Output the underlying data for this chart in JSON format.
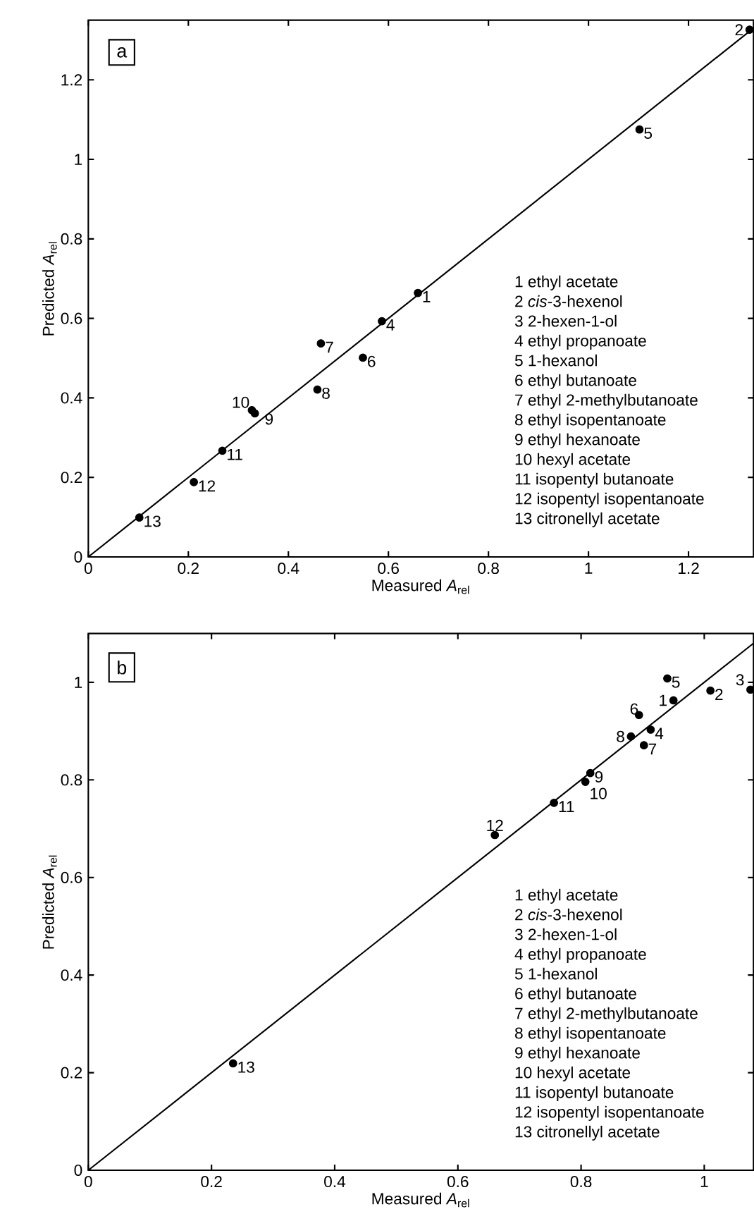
{
  "chart_data": [
    {
      "type": "scatter",
      "xlabel": "Measured *A*$_{rel}$",
      "ylabel": "Predicted *A*$_{rel}$",
      "xlim": [
        0,
        1.33
      ],
      "ylim": [
        0,
        1.35
      ],
      "xticks": [
        0,
        0.2,
        0.4,
        0.6,
        0.8,
        1,
        1.2
      ],
      "yticks": [
        0,
        0.2,
        0.4,
        0.6,
        0.8,
        1,
        1.2
      ],
      "series": [
        {
          "type": "scatter",
          "marker": "circle",
          "color": "#000000",
          "x": [
            0.659,
            1.322,
            0.587,
            1.102,
            0.549,
            0.465,
            0.458,
            0.333,
            0.327,
            0.268,
            0.211,
            0.102
          ],
          "values": [
            0.664,
            1.326,
            0.593,
            1.075,
            0.501,
            0.537,
            0.421,
            0.361,
            0.369,
            0.267,
            0.188,
            0.099
          ]
        },
        {
          "type": "line",
          "color": "#000000",
          "marker": "none",
          "line_style": "solid",
          "x": [
            0,
            1.33
          ],
          "values": [
            0,
            1.33
          ]
        }
      ],
      "annotations": [
        "a",
        "1 ethyl acetate",
        "2 *cis*-3-hexenol",
        "3 2-hexen-1-ol",
        "4 ethyl propanoate",
        "5 1-hexanol",
        "6 ethyl butanoate",
        "7 ethyl 2-methylbutanoate",
        "8 ethyl isopentanoate",
        "9 ethyl hexanoate",
        "10 hexyl acetate",
        "11 isopentyl butanoate",
        "12 isopentyl isopentanoate",
        "13 citronellyl acetate",
        {
          "text": "1",
          "x": 0.659,
          "y": 0.664
        },
        {
          "text": "2",
          "x": 1.322,
          "y": 1.326
        },
        {
          "text": "4",
          "x": 0.587,
          "y": 0.593
        },
        {
          "text": "5",
          "x": 1.102,
          "y": 1.075
        },
        {
          "text": "6",
          "x": 0.549,
          "y": 0.501
        },
        {
          "text": "7",
          "x": 0.465,
          "y": 0.537
        },
        {
          "text": "8",
          "x": 0.458,
          "y": 0.421
        },
        {
          "text": "9",
          "x": 0.333,
          "y": 0.361
        },
        {
          "text": "10",
          "x": 0.327,
          "y": 0.369
        },
        {
          "text": "11",
          "x": 0.268,
          "y": 0.267
        },
        {
          "text": "12",
          "x": 0.211,
          "y": 0.188
        },
        {
          "text": "13",
          "x": 0.102,
          "y": 0.099
        }
      ]
    },
    {
      "type": "scatter",
      "xlabel": "Measured *A*$_{rel}$",
      "ylabel": "Predicted *A*$_{rel}$",
      "xlim": [
        0,
        1.08
      ],
      "ylim": [
        0,
        1.1
      ],
      "xticks": [
        0,
        0.2,
        0.4,
        0.6,
        0.8,
        1
      ],
      "yticks": [
        0,
        0.2,
        0.4,
        0.6,
        0.8,
        1
      ],
      "series": [
        {
          "type": "scatter",
          "marker": "circle",
          "color": "#000000",
          "x": [
            0.95,
            1.01,
            1.075,
            0.913,
            0.94,
            0.894,
            0.902,
            0.881,
            0.815,
            0.807,
            0.756,
            0.66,
            0.235
          ],
          "values": [
            0.963,
            0.983,
            0.985,
            0.903,
            1.008,
            0.933,
            0.871,
            0.889,
            0.814,
            0.796,
            0.753,
            0.687,
            0.219
          ]
        },
        {
          "type": "line",
          "color": "#000000",
          "marker": "none",
          "line_style": "solid",
          "x": [
            0,
            1.08
          ],
          "values": [
            0,
            1.08
          ]
        }
      ],
      "annotations": [
        "b",
        "1 ethyl acetate",
        "2 *cis*-3-hexenol",
        "3 2-hexen-1-ol",
        "4 ethyl propanoate",
        "5 1-hexanol",
        "6 ethyl butanoate",
        "7 ethyl 2-methylbutanoate",
        "8 ethyl isopentanoate",
        "9 ethyl hexanoate",
        "10 hexyl acetate",
        "11 isopentyl butanoate",
        "12 isopentyl isopentanoate",
        "13 citronellyl acetate",
        {
          "text": "1",
          "x": 0.95,
          "y": 0.963
        },
        {
          "text": "2",
          "x": 1.01,
          "y": 0.983
        },
        {
          "text": "3",
          "x": 1.075,
          "y": 0.985
        },
        {
          "text": "4",
          "x": 0.913,
          "y": 0.903
        },
        {
          "text": "5",
          "x": 0.94,
          "y": 1.008
        },
        {
          "text": "6",
          "x": 0.894,
          "y": 0.933
        },
        {
          "text": "7",
          "x": 0.902,
          "y": 0.871
        },
        {
          "text": "8",
          "x": 0.881,
          "y": 0.889
        },
        {
          "text": "9",
          "x": 0.815,
          "y": 0.814
        },
        {
          "text": "10",
          "x": 0.807,
          "y": 0.796
        },
        {
          "text": "11",
          "x": 0.756,
          "y": 0.753
        },
        {
          "text": "12",
          "x": 0.66,
          "y": 0.687
        },
        {
          "text": "13",
          "x": 0.235,
          "y": 0.219
        }
      ]
    }
  ]
}
